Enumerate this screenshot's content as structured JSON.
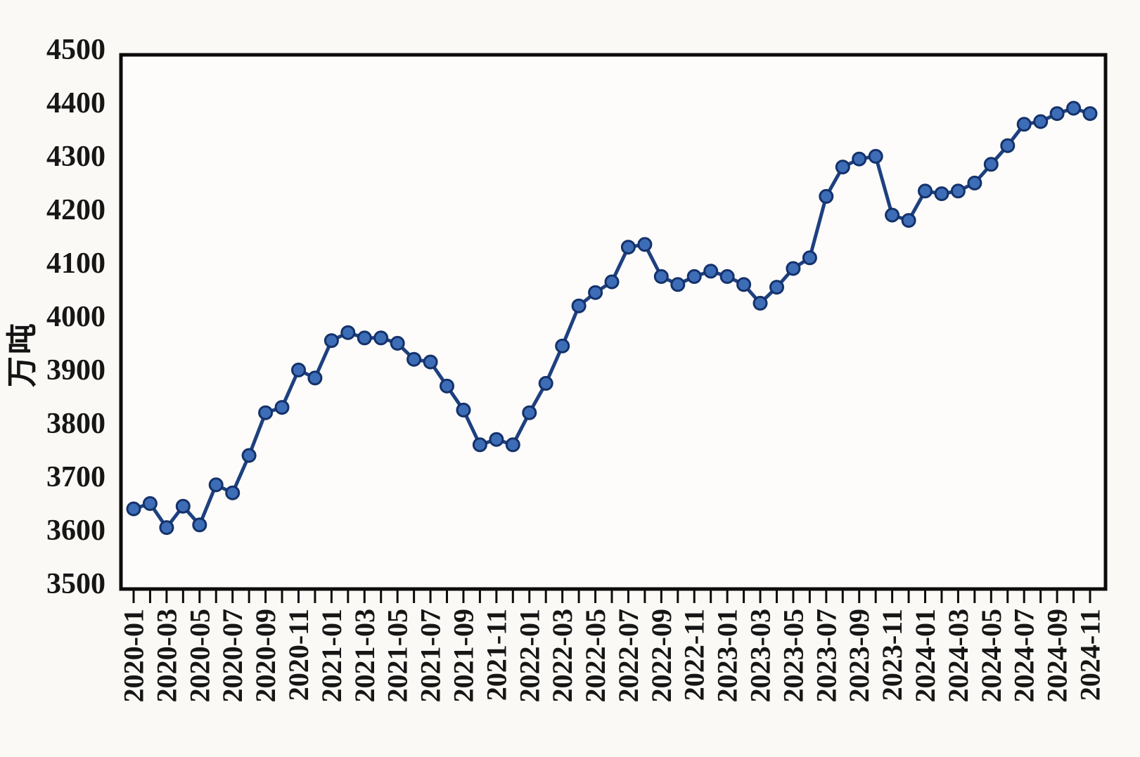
{
  "page": {
    "background": "#faf9f5"
  },
  "chart_data": {
    "type": "line",
    "title": "",
    "ylabel": "万吨",
    "xlabel": "",
    "grid": false,
    "legend_position": "none",
    "ylim": [
      3500,
      4500
    ],
    "ytick_step": 100,
    "x_label_every": 2,
    "x": [
      "2020-01",
      "2020-02",
      "2020-03",
      "2020-04",
      "2020-05",
      "2020-06",
      "2020-07",
      "2020-08",
      "2020-09",
      "2020-10",
      "2020-11",
      "2020-12",
      "2021-01",
      "2021-02",
      "2021-03",
      "2021-04",
      "2021-05",
      "2021-06",
      "2021-07",
      "2021-08",
      "2021-09",
      "2021-10",
      "2021-11",
      "2021-12",
      "2022-01",
      "2022-02",
      "2022-03",
      "2022-04",
      "2022-05",
      "2022-06",
      "2022-07",
      "2022-08",
      "2022-09",
      "2022-10",
      "2022-11",
      "2022-12",
      "2023-01",
      "2023-02",
      "2023-03",
      "2023-04",
      "2023-05",
      "2023-06",
      "2023-07",
      "2023-08",
      "2023-09",
      "2023-10",
      "2023-11",
      "2023-12",
      "2024-01",
      "2024-02",
      "2024-03",
      "2024-04",
      "2024-05",
      "2024-06",
      "2024-07",
      "2024-08",
      "2024-09",
      "2024-10",
      "2024-11"
    ],
    "values": [
      3650,
      3660,
      3615,
      3655,
      3620,
      3695,
      3680,
      3750,
      3830,
      3840,
      3910,
      3895,
      3965,
      3980,
      3970,
      3970,
      3960,
      3930,
      3925,
      3880,
      3835,
      3770,
      3780,
      3770,
      3830,
      3885,
      3955,
      4030,
      4055,
      4075,
      4140,
      4145,
      4085,
      4070,
      4085,
      4095,
      4085,
      4070,
      4035,
      4065,
      4100,
      4120,
      4235,
      4290,
      4305,
      4310,
      4200,
      4190,
      4245,
      4240,
      4245,
      4260,
      4295,
      4330,
      4370,
      4375,
      4390,
      4400,
      4390
    ],
    "colors": {
      "line": "#1e4080",
      "marker_fill": "#3d6db6",
      "marker_stroke": "#14316a",
      "axis": "#0c0c0c",
      "text": "#161616"
    }
  }
}
